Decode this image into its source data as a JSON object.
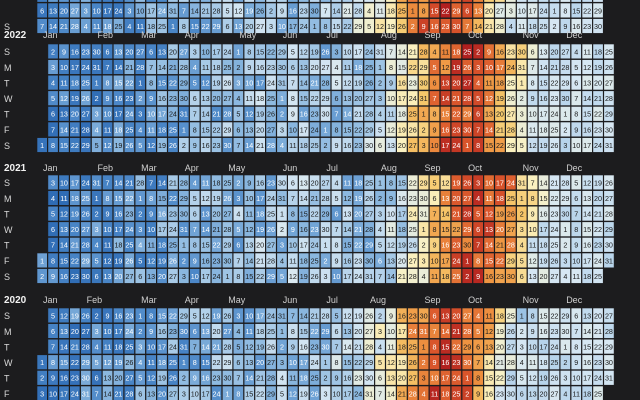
{
  "chart_data": {
    "type": "heatmap",
    "layout": "calendar",
    "grid": true,
    "colors": {
      "background": "#1c1c1e",
      "scale": [
        "#2f6cb5",
        "#4a86c7",
        "#8db9e0",
        "#d6e7f3",
        "#fbf2c2",
        "#f6c86b",
        "#ee9240",
        "#d9542b",
        "#b11f1f"
      ]
    },
    "weekday_labels": [
      "S",
      "M",
      "T",
      "W",
      "T",
      "F",
      "S"
    ],
    "month_labels": [
      "Jan",
      "Feb",
      "Mar",
      "Apr",
      "May",
      "Jun",
      "Jul",
      "Aug",
      "Sep",
      "Oct",
      "Nov",
      "Dec"
    ],
    "years": [
      {
        "year": "2023",
        "visible_rows": [
          "S"
        ],
        "note": "only the last weekday row is visible at the top edge"
      },
      {
        "year": "2022",
        "visible_rows": [
          "S",
          "M",
          "T",
          "W",
          "T",
          "F",
          "S"
        ]
      },
      {
        "year": "2021",
        "visible_rows": [
          "S",
          "M",
          "T",
          "W",
          "T",
          "F",
          "S"
        ]
      },
      {
        "year": "2020",
        "visible_rows": [
          "S",
          "M",
          "T",
          "W",
          "T",
          "F"
        ],
        "note": "last row cut off at bottom edge"
      }
    ],
    "value_profile": {
      "description": "day-level values; cool (blue) in Jan–Jul, warming through Aug, peak warm (orange/red) from mid-Sep to late Oct, pale in Nov–Dec",
      "peak_day_of_year_2022": 270,
      "peak_day_of_year_2021": 280,
      "peak_day_of_year_2020": 262
    }
  }
}
